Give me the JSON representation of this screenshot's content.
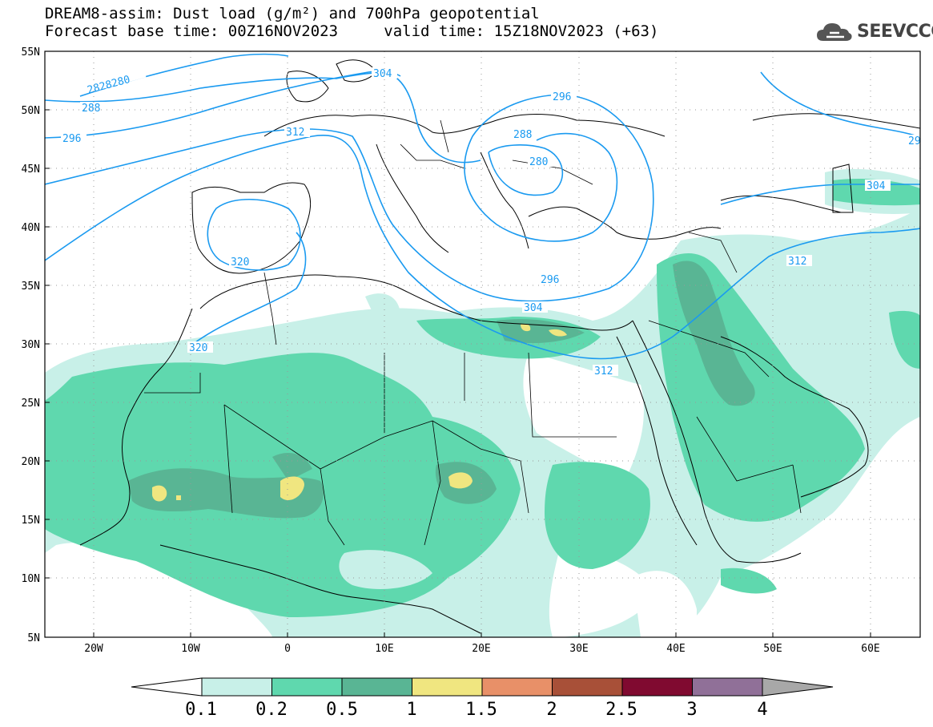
{
  "header": {
    "title_line1": "DREAM8-assim: Dust load (g/m²) and 700hPa geopotential",
    "forecast_base_label": "Forecast base time: 00Z16NOV2023",
    "valid_label": "valid time: 15Z18NOV2023 (+63)"
  },
  "logo": {
    "text": "SEEVCCC",
    "icon": "cloud-icon"
  },
  "axes": {
    "lat_ticks": [
      "55N",
      "50N",
      "45N",
      "40N",
      "35N",
      "30N",
      "25N",
      "20N",
      "15N",
      "10N",
      "5N"
    ],
    "lon_ticks": [
      "20W",
      "10W",
      "0",
      "10E",
      "20E",
      "30E",
      "40E",
      "50E",
      "60E"
    ]
  },
  "contours": {
    "label_28": "28",
    "label_282": "282",
    "label_280a": "80",
    "label_288a": "288",
    "label_296a": "296",
    "label_304a": "304",
    "label_312a": "312",
    "label_296b": "296",
    "label_288b": "288",
    "label_280b": "280",
    "label_320a": "320",
    "label_320b": "320",
    "label_296c": "296",
    "label_304b": "304",
    "label_312b": "312",
    "label_304c": "304",
    "label_312c": "312",
    "label_29": "29"
  },
  "legend": {
    "labels": [
      "0.1",
      "0.2",
      "0.5",
      "1",
      "1.5",
      "2",
      "2.5",
      "3",
      "4"
    ],
    "colors": [
      "#c8f0e8",
      "#5fd8ae",
      "#59b594",
      "#f0e680",
      "#e89068",
      "#a85038",
      "#800a30",
      "#907098",
      "#a8a8a8"
    ]
  },
  "chart_data": {
    "type": "map",
    "variable": "Dust load (g/m²)",
    "overlay": "700hPa geopotential",
    "extent": {
      "lon": [
        -25,
        65
      ],
      "lat": [
        5,
        55
      ]
    },
    "levels": [
      0.1,
      0.2,
      0.5,
      1,
      1.5,
      2,
      2.5,
      3,
      4
    ]
  }
}
